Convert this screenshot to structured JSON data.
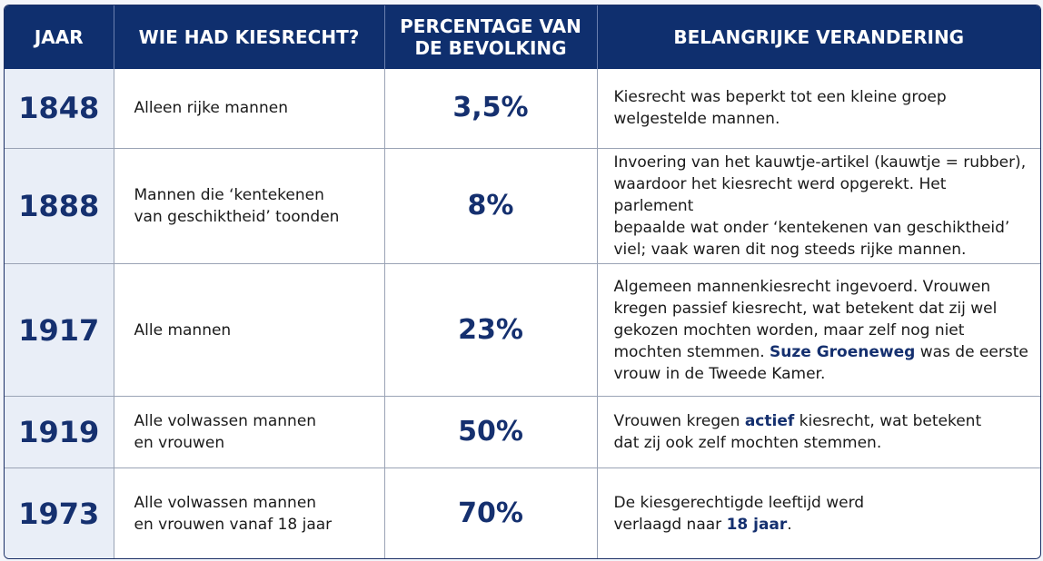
{
  "headers": {
    "year": "JAAR",
    "who": "WIE HAD KIESRECHT?",
    "percentage_line1": "PERCENTAGE VAN",
    "percentage_line2": "DE BEVOLKING",
    "change": "BELANGRIJKE VERANDERING"
  },
  "rows": [
    {
      "year": "1848",
      "who_line1": "Alleen rijke mannen",
      "who_line2": "",
      "percentage": "3,5%",
      "change_lines": [
        "Kiesrecht was beperkt tot een kleine groep",
        "welgestelde mannen."
      ]
    },
    {
      "year": "1888",
      "who_line1": "Mannen die ‘kentekenen",
      "who_line2": "van geschiktheid’ toonden",
      "percentage": "8%",
      "change_lines": [
        "Invoering van het kauwtje-artikel (kauwtje = rubber),",
        "waardoor het kiesrecht werd opgerekt. Het parlement",
        "bepaalde wat onder ‘kentekenen van geschiktheid’",
        "viel; vaak waren dit nog steeds rijke mannen."
      ]
    },
    {
      "year": "1917",
      "who_line1": "Alle mannen",
      "who_line2": "",
      "percentage": "23%",
      "change_lines": [
        "Algemeen mannenkiesrecht ingevoerd. Vrouwen",
        "kregen passief kiesrecht, wat betekent dat zij wel",
        "gekozen mochten worden, maar zelf nog niet"
      ],
      "change_line4_before": "mochten stemmen. ",
      "change_line4_highlight": "Suze Groeneweg",
      "change_line4_after": " was de eerste",
      "change_line5": "vrouw in de Tweede Kamer."
    },
    {
      "year": "1919",
      "who_line1": "Alle volwassen mannen",
      "who_line2": "en vrouwen",
      "percentage": "50%",
      "change_line1_before": "Vrouwen kregen ",
      "change_line1_highlight": "actief",
      "change_line1_after": " kiesrecht, wat betekent",
      "change_line2": "dat zij ook zelf mochten stemmen."
    },
    {
      "year": "1973",
      "who_line1": "Alle volwassen mannen",
      "who_line2": "en vrouwen vanaf 18 jaar",
      "percentage": "70%",
      "change_line1": "De kiesgerechtigde leeftijd werd",
      "change_line2_before": "verlaagd naar ",
      "change_line2_highlight": "18 jaar",
      "change_line2_after": "."
    }
  ],
  "colors": {
    "header_bg": "#0f2f6e",
    "accent_text": "#15306f",
    "year_cell_bg": "#e9eef7"
  }
}
